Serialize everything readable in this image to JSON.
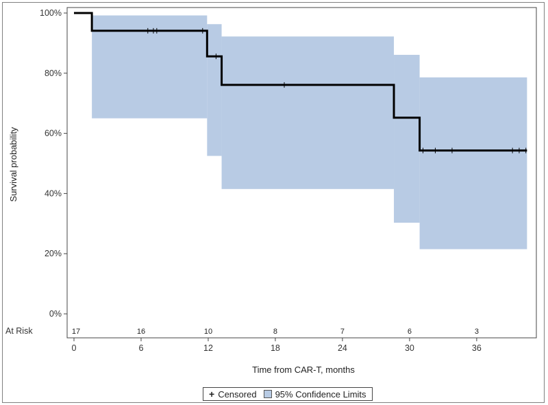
{
  "chart_data": {
    "type": "line",
    "subtype": "kaplan-meier survival curve with confidence band",
    "xlabel": "Time from CAR-T, months",
    "ylabel": "Survival probability",
    "xlim": [
      0,
      40.5
    ],
    "ylim": [
      0,
      1
    ],
    "x_ticks": [
      0,
      6,
      12,
      18,
      24,
      30,
      36
    ],
    "y_ticks": [
      {
        "value": 0.0,
        "label": "0%"
      },
      {
        "value": 0.2,
        "label": "20%"
      },
      {
        "value": 0.4,
        "label": "40%"
      },
      {
        "value": 0.6,
        "label": "60%"
      },
      {
        "value": 0.8,
        "label": "80%"
      },
      {
        "value": 1.0,
        "label": "100%"
      }
    ],
    "grid": false,
    "colors": {
      "curve": "#000000",
      "band": "#b8cbe4",
      "censor": "#000000"
    },
    "survival_steps": [
      {
        "x": 0,
        "y": 1.0
      },
      {
        "x": 1.6,
        "y": 0.941
      },
      {
        "x": 11.9,
        "y": 0.856
      },
      {
        "x": 13.2,
        "y": 0.761
      },
      {
        "x": 28.6,
        "y": 0.652
      },
      {
        "x": 30.9,
        "y": 0.543
      }
    ],
    "x_end": 40.5,
    "confidence_band": [
      {
        "x_start": 1.6,
        "x_end": 11.9,
        "lower": 0.65,
        "upper": 0.992
      },
      {
        "x_start": 11.9,
        "x_end": 13.2,
        "lower": 0.525,
        "upper": 0.963
      },
      {
        "x_start": 13.2,
        "x_end": 28.6,
        "lower": 0.415,
        "upper": 0.922
      },
      {
        "x_start": 28.6,
        "x_end": 30.9,
        "lower": 0.303,
        "upper": 0.861
      },
      {
        "x_start": 30.9,
        "x_end": 40.5,
        "lower": 0.215,
        "upper": 0.786
      }
    ],
    "censored": [
      {
        "x": 6.6,
        "y": 0.941
      },
      {
        "x": 7.1,
        "y": 0.941
      },
      {
        "x": 7.4,
        "y": 0.941
      },
      {
        "x": 11.5,
        "y": 0.941
      },
      {
        "x": 12.7,
        "y": 0.856
      },
      {
        "x": 18.8,
        "y": 0.761
      },
      {
        "x": 31.2,
        "y": 0.543
      },
      {
        "x": 32.3,
        "y": 0.543
      },
      {
        "x": 33.8,
        "y": 0.543
      },
      {
        "x": 39.2,
        "y": 0.543
      },
      {
        "x": 39.8,
        "y": 0.543
      },
      {
        "x": 40.4,
        "y": 0.543
      }
    ],
    "at_risk": {
      "label": "At Risk",
      "counts": [
        {
          "x": 0,
          "n": 17
        },
        {
          "x": 6,
          "n": 16
        },
        {
          "x": 12,
          "n": 10
        },
        {
          "x": 18,
          "n": 8
        },
        {
          "x": 24,
          "n": 7
        },
        {
          "x": 30,
          "n": 6
        },
        {
          "x": 36,
          "n": 3
        }
      ]
    },
    "legend": {
      "position": "bottom-center",
      "items": [
        {
          "symbol": "+",
          "label": "Censored"
        },
        {
          "symbol": "swatch",
          "label": "95% Confidence Limits"
        }
      ]
    }
  }
}
